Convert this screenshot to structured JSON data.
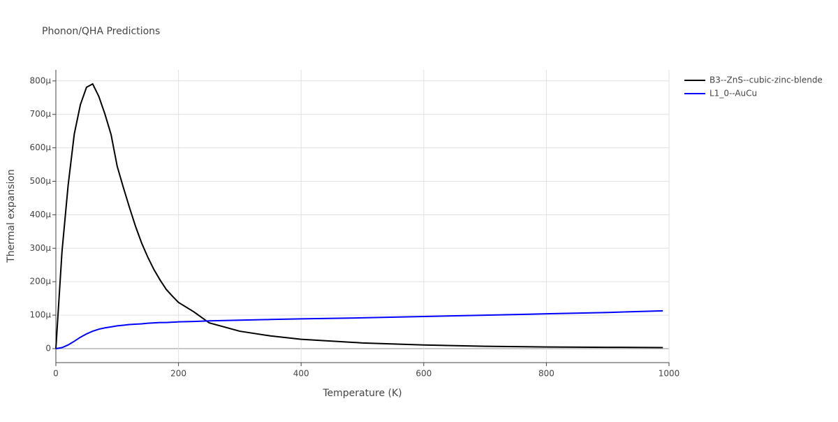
{
  "chart_data": {
    "type": "line",
    "title": "Phonon/QHA Predictions",
    "x_label": "Temperature (K)",
    "y_label": "Thermal expansion",
    "x": [
      0,
      10,
      20,
      30,
      40,
      50,
      60,
      70,
      80,
      90,
      100,
      110,
      120,
      130,
      140,
      150,
      160,
      170,
      180,
      190,
      200,
      225,
      250,
      300,
      350,
      400,
      500,
      600,
      700,
      800,
      900,
      990
    ],
    "series": [
      {
        "name": "B3--ZnS--cubic-zinc-blende",
        "color": "#000000",
        "values": [
          0,
          0.00029,
          0.000488,
          0.000641,
          0.000729,
          0.000781,
          0.000791,
          0.000754,
          0.000701,
          0.00064,
          0.000545,
          0.000482,
          0.000422,
          0.000365,
          0.000315,
          0.000273,
          0.000236,
          0.000205,
          0.000177,
          0.000157,
          0.000138,
          0.00011,
          7.7e-05,
          5.2e-05,
          3.8e-05,
          2.8e-05,
          1.7e-05,
          1.1e-05,
          7e-06,
          5e-06,
          4e-06,
          3e-06
        ]
      },
      {
        "name": "L1_0--AuCu",
        "color": "#0000ff",
        "values": [
          0,
          3e-06,
          1.1e-05,
          2.2e-05,
          3.4e-05,
          4.4e-05,
          5.2e-05,
          5.8e-05,
          6.2e-05,
          6.5e-05,
          6.8e-05,
          7e-05,
          7.2e-05,
          7.3e-05,
          7.4e-05,
          7.6e-05,
          7.7e-05,
          7.8e-05,
          7.8e-05,
          7.9e-05,
          8e-05,
          8.1e-05,
          8.3e-05,
          8.5e-05,
          8.7e-05,
          8.9e-05,
          9.2e-05,
          9.6e-05,
          0.0001,
          0.000104,
          0.000108,
          0.000113
        ]
      }
    ],
    "xlim": [
      0,
      1000
    ],
    "xticks": [
      0,
      200,
      400,
      600,
      800,
      1000
    ],
    "ylim": [
      -4.18e-05,
      0.000833
    ],
    "yticks": [
      0,
      {
        "value": 0.0001,
        "label": "100µ"
      },
      {
        "value": 0.0002,
        "label": "200µ"
      },
      {
        "value": 0.0003,
        "label": "300µ"
      },
      {
        "value": 0.0004,
        "label": "400µ"
      },
      {
        "value": 0.0005,
        "label": "500µ"
      },
      {
        "value": 0.0006,
        "label": "600µ"
      },
      {
        "value": 0.0007,
        "label": "700µ"
      },
      {
        "value": 0.0008,
        "label": "800µ"
      }
    ],
    "grid": true,
    "legend": "top-right"
  }
}
